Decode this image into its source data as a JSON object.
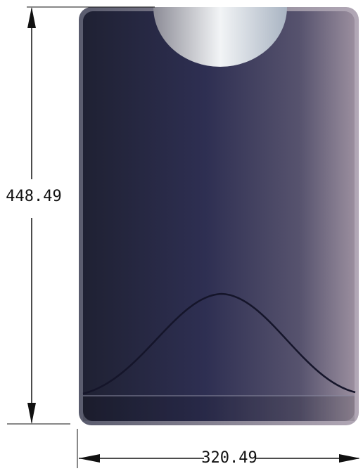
{
  "dimensions": {
    "height": "448.49",
    "width": "320.49"
  }
}
